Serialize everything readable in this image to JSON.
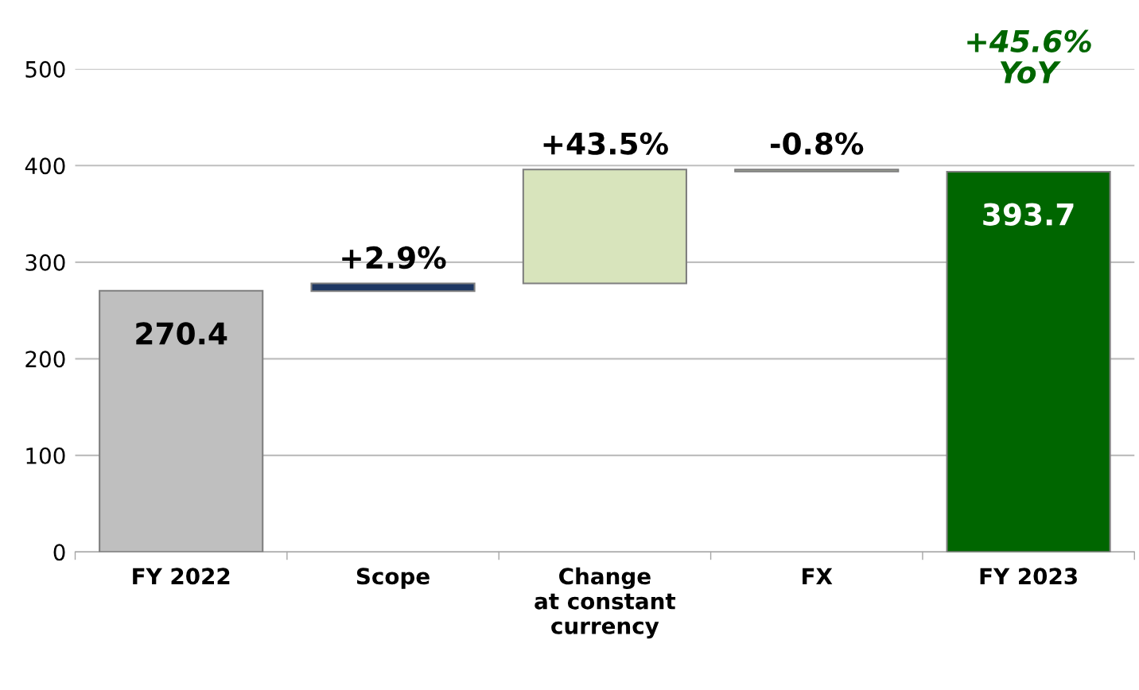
{
  "chart_data": {
    "type": "bar",
    "categories": [
      "FY 2022",
      "Scope",
      "Change\nat constant\ncurrency",
      "FX",
      "FY 2023"
    ],
    "values": [
      270.4,
      8,
      118,
      -2,
      393.7
    ],
    "base": [
      0,
      270,
      278,
      396,
      0
    ],
    "colors": [
      "#bfbfbf",
      "#1f3864",
      "#d8e4bc",
      "#d8e4bc",
      "#006600"
    ],
    "value_labels": [
      "270.4",
      null,
      null,
      null,
      "393.7"
    ],
    "annotations": [
      {
        "text": "+2.9%",
        "x": "Scope",
        "y": 278
      },
      {
        "text": "+43.5%",
        "x": "Change\nat constant\ncurrency",
        "y": 396
      },
      {
        "text": "-0.8%",
        "x": "FX",
        "y": 396
      },
      "+45.6%\nYoY"
    ],
    "ylim": [
      0,
      500
    ],
    "yticks": [
      0,
      100,
      200,
      300,
      400,
      500
    ],
    "grid": "y",
    "legend": false
  }
}
